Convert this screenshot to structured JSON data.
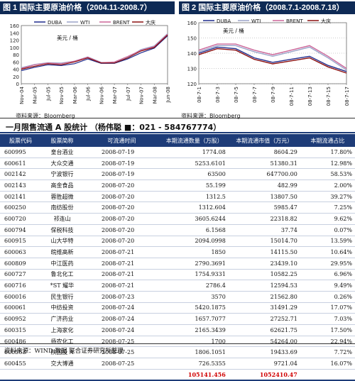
{
  "figure1": {
    "title": "图 1  国际主要原油价格（2004.11-2008.7）"
  },
  "figure2": {
    "title": "图 2  国际主要原油价格（2008.7.1-2008.7.18）"
  },
  "source_label": "资料来源：Bloomberg",
  "section": {
    "title": "一月限售流通 A 股统计  （杨伟聪  ■：021 - 584767774）"
  },
  "table": {
    "headers": [
      "股票代码",
      "股票简称",
      "可流通时间",
      "本期流通数量（万股）",
      "本期流通市值（万元）",
      "本期流通占比"
    ],
    "rows": [
      [
        "600995",
        "皇台酒业",
        "2008-07-19",
        "1774.08",
        "8604.29",
        "17.80%"
      ],
      [
        "600611",
        "大众交通",
        "2008-07-19",
        "5253.6101",
        "51380.31",
        "12.98%"
      ],
      [
        "002142",
        "宁波银行",
        "2008-07-19",
        "63500",
        "647700.00",
        "58.53%"
      ],
      [
        "002143",
        "高金食品",
        "2008-07-20",
        "55.199",
        "482.99",
        "2.00%"
      ],
      [
        "002141",
        "蓉胜超微",
        "2008-07-20",
        "1312.5",
        "13807.50",
        "39.27%"
      ],
      [
        "600250",
        "南纺股份",
        "2008-07-20",
        "1312.604",
        "5985.47",
        "7.25%"
      ],
      [
        "600720",
        "祁连山",
        "2008-07-20",
        "3605.6244",
        "22318.82",
        "9.62%"
      ],
      [
        "600794",
        "保税科技",
        "2008-07-20",
        "6.1568",
        "37.74",
        "0.07%"
      ],
      [
        "600915",
        "山大华特",
        "2008-07-20",
        "2094.0998",
        "15014.70",
        "13.59%"
      ],
      [
        "600063",
        "皖维高新",
        "2008-07-21",
        "1850",
        "14115.50",
        "10.64%"
      ],
      [
        "600809",
        "中江医药",
        "2008-07-21",
        "2790.3691",
        "23439.10",
        "29.95%"
      ],
      [
        "600727",
        "鲁北化工",
        "2008-07-21",
        "1754.9331",
        "10582.25",
        "6.96%"
      ],
      [
        "600716",
        "*ST 耀华",
        "2008-07-21",
        "2786.4",
        "12594.53",
        "9.49%"
      ],
      [
        "600016",
        "民生银行",
        "2008-07-23",
        "3570",
        "21562.80",
        "0.26%"
      ],
      [
        "600061",
        "中纺投资",
        "2008-07-24",
        "5420.1875",
        "31491.29",
        "17.07%"
      ],
      [
        "600952",
        "广济药业",
        "2008-07-24",
        "1657.7077",
        "27252.71",
        "7.03%"
      ],
      [
        "600315",
        "上海家化",
        "2008-07-24",
        "2165.3439",
        "62621.75",
        "17.50%"
      ],
      [
        "600486",
        "扬农化工",
        "2008-07-25",
        "1700",
        "54264.00",
        "22.94%"
      ],
      [
        "600563",
        "陕国投 A",
        "2008-07-25",
        "1806.1051",
        "19433.69",
        "7.72%"
      ],
      [
        "600455",
        "交大博通",
        "2008-07-25",
        "726.5355",
        "9721.04",
        "16.07%"
      ]
    ],
    "total": {
      "quantity": "105141.456",
      "value": "1052410.47"
    }
  },
  "footer": "资料来源：WIND 数据  联合证券研究所整理",
  "chart_data": [
    {
      "type": "line",
      "title": "图 1  国际主要原油价格（2004.11-2008.7）",
      "ylabel": "美元 / 桶",
      "ylim": [
        0,
        160
      ],
      "yticks": [
        "0",
        "20",
        "40",
        "60",
        "80",
        "100",
        "120",
        "140",
        "160"
      ],
      "x": [
        "Nov-04",
        "Mar-05",
        "Jul-05",
        "Nov-05",
        "Mar-06",
        "Jul-06",
        "Nov-06",
        "Mar-07",
        "Jul-07",
        "Nov-07",
        "Mar-08",
        "Jun-08"
      ],
      "series": [
        {
          "name": "DUBA",
          "color": "#1e2a8c",
          "values": [
            36,
            45,
            52,
            50,
            55,
            68,
            56,
            56,
            68,
            85,
            98,
            132
          ]
        },
        {
          "name": "WTI",
          "color": "#9aa3c8",
          "values": [
            44,
            53,
            58,
            57,
            62,
            74,
            59,
            58,
            72,
            94,
            104,
            138
          ]
        },
        {
          "name": "BRENT",
          "color": "#cc6699",
          "values": [
            42,
            52,
            57,
            55,
            62,
            73,
            58,
            60,
            75,
            92,
            102,
            136
          ]
        },
        {
          "name": "大庆",
          "color": "#8b1010",
          "values": [
            40,
            48,
            55,
            52,
            60,
            71,
            57,
            57,
            71,
            90,
            100,
            134
          ]
        }
      ]
    },
    {
      "type": "line",
      "title": "图 2  国际主要原油价格（2008.7.1-2008.7.18）",
      "ylabel": "美元 / 桶",
      "ylim": [
        120,
        160
      ],
      "yticks": [
        "120",
        "130",
        "140",
        "150",
        "160"
      ],
      "x": [
        "08-7-1",
        "08-7-3",
        "08-7-5",
        "08-7-7",
        "08-7-9",
        "08-7-11",
        "08-7-13",
        "08-7-15",
        "08-7-17"
      ],
      "series": [
        {
          "name": "DUBA",
          "color": "#1e2a8c",
          "values": [
            140,
            144,
            143,
            137,
            134,
            136,
            138,
            132,
            128
          ]
        },
        {
          "name": "WTI",
          "color": "#9aa3c8",
          "values": [
            141,
            145,
            145,
            141,
            138,
            141,
            144,
            137,
            129
          ]
        },
        {
          "name": "BRENT",
          "color": "#cc6699",
          "values": [
            142,
            146,
            146,
            142,
            139,
            142,
            145,
            138,
            130
          ]
        },
        {
          "name": "大庆",
          "color": "#8b1010",
          "values": [
            139,
            143,
            142,
            136,
            133,
            135,
            137,
            131,
            127
          ]
        }
      ]
    }
  ]
}
